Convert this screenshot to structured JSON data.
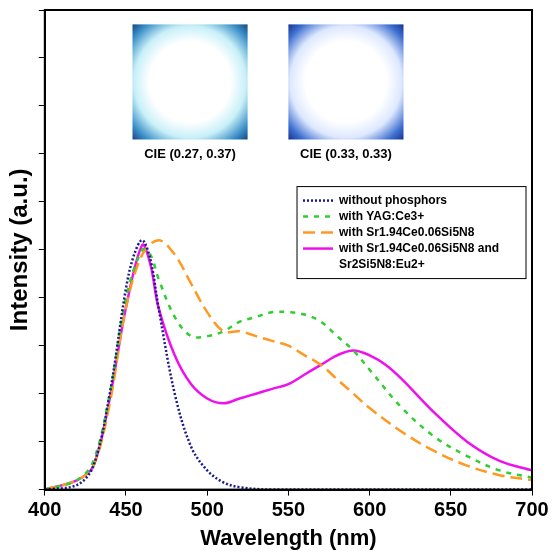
{
  "chart_data": {
    "type": "line",
    "x_label": "Wavelength (nm)",
    "y_label": "Intensity (a.u.)",
    "xlim": [
      400,
      700
    ],
    "xticks": [
      400,
      450,
      500,
      550,
      600,
      650,
      700
    ],
    "ylim": [
      0,
      1
    ],
    "yticks": [
      0,
      0.1,
      0.2,
      0.3,
      0.4,
      0.5,
      0.6,
      0.7,
      0.8,
      0.9,
      1
    ],
    "tick_labels": "x",
    "grid": false,
    "legend": "right",
    "annotations": [
      "CIE (0.27, 0.37)",
      "CIE (0.33, 0.33)"
    ],
    "series": [
      {
        "name": "without phosphors",
        "color": "#1a1a8c",
        "line_style": "dotted",
        "x": [
          400,
          420,
          430,
          440,
          450,
          455,
          460,
          465,
          470,
          480,
          490,
          500,
          510,
          520,
          540,
          700
        ],
        "values": [
          0,
          0.01,
          0.05,
          0.2,
          0.42,
          0.49,
          0.52,
          0.48,
          0.38,
          0.2,
          0.09,
          0.04,
          0.015,
          0.005,
          0,
          0
        ]
      },
      {
        "name": "with YAG:Ce3+",
        "color": "#33cc33",
        "line_style": "dashed",
        "x": [
          400,
          420,
          430,
          440,
          450,
          460,
          465,
          470,
          480,
          490,
          500,
          510,
          520,
          530,
          540,
          550,
          560,
          570,
          580,
          590,
          600,
          620,
          640,
          660,
          680,
          700
        ],
        "values": [
          0,
          0.02,
          0.06,
          0.2,
          0.4,
          0.5,
          0.49,
          0.44,
          0.36,
          0.32,
          0.32,
          0.33,
          0.35,
          0.36,
          0.37,
          0.37,
          0.365,
          0.35,
          0.32,
          0.29,
          0.25,
          0.17,
          0.11,
          0.07,
          0.04,
          0.025
        ]
      },
      {
        "name": "with Sr1.94Ce0.06Si5N8",
        "color": "#ff9922",
        "line_style": "longdash",
        "x": [
          400,
          420,
          430,
          440,
          450,
          460,
          470,
          480,
          490,
          500,
          510,
          520,
          530,
          540,
          550,
          560,
          570,
          580,
          590,
          600,
          620,
          640,
          660,
          680,
          700
        ],
        "values": [
          0,
          0.02,
          0.05,
          0.18,
          0.38,
          0.49,
          0.52,
          0.49,
          0.43,
          0.37,
          0.33,
          0.33,
          0.32,
          0.31,
          0.3,
          0.28,
          0.26,
          0.23,
          0.2,
          0.17,
          0.12,
          0.08,
          0.05,
          0.03,
          0.02
        ]
      },
      {
        "name": "with Sr1.94Ce0.06Si5N8 and Sr2Si5N8:Eu2+",
        "color": "#ee11ee",
        "line_style": "solid",
        "x": [
          400,
          420,
          430,
          440,
          450,
          460,
          465,
          470,
          480,
          490,
          500,
          510,
          520,
          530,
          540,
          550,
          560,
          570,
          580,
          590,
          600,
          610,
          620,
          640,
          660,
          680,
          700
        ],
        "values": [
          0,
          0.02,
          0.05,
          0.19,
          0.38,
          0.51,
          0.47,
          0.38,
          0.28,
          0.22,
          0.19,
          0.18,
          0.19,
          0.2,
          0.21,
          0.22,
          0.24,
          0.26,
          0.28,
          0.29,
          0.28,
          0.26,
          0.23,
          0.16,
          0.1,
          0.06,
          0.04
        ]
      }
    ]
  }
}
